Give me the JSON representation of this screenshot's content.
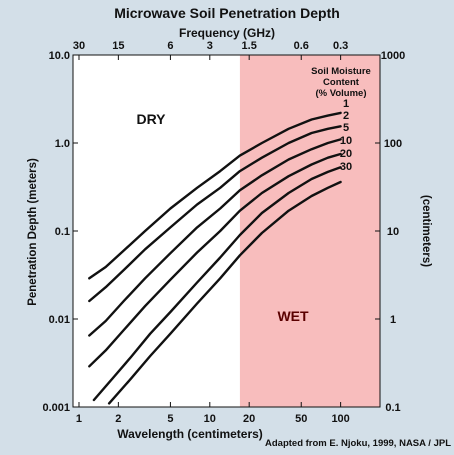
{
  "chart_data": {
    "type": "line",
    "title": "Microwave Soil Penetration Depth",
    "top_axis_label": "Frequency (GHz)",
    "xlabel": "Wavelength (centimeters)",
    "ylabel": "Penetration Depth (meters)",
    "right_axis_label": "(centimeters)",
    "credit": "Adapted from E. Njoku, 1999, NASA / JPL",
    "x_scale": "log",
    "y_scale": "log",
    "xlim": [
      0.9,
      200
    ],
    "ylim": [
      0.001,
      10
    ],
    "x_ticks": [
      1,
      2,
      5,
      10,
      20,
      50,
      100
    ],
    "y_tick_labels": [
      "0.001",
      "0.01",
      "0.1",
      "1.0",
      "10.0"
    ],
    "y_ticks": [
      0.001,
      0.01,
      0.1,
      1.0,
      10.0
    ],
    "right_tick_labels": [
      "0.1",
      "1",
      "10",
      "100",
      "1000"
    ],
    "top_ticks": [
      {
        "label": "30",
        "wavelength": 1
      },
      {
        "label": "15",
        "wavelength": 2
      },
      {
        "label": "6",
        "wavelength": 5
      },
      {
        "label": "3",
        "wavelength": 10
      },
      {
        "label": "1.5",
        "wavelength": 20
      },
      {
        "label": "0.6",
        "wavelength": 50
      },
      {
        "label": "0.3",
        "wavelength": 100
      }
    ],
    "regions": [
      {
        "label": "DRY",
        "color": "#ffffff",
        "from": 0.9,
        "to": 17
      },
      {
        "label": "WET",
        "color": "#f8bdbd",
        "from": 17,
        "to": 200
      }
    ],
    "legend_title": [
      "Soil Moisture",
      "Content",
      "(% Volume)"
    ],
    "series": [
      {
        "name": "1",
        "x": [
          1.2,
          1.6,
          2.2,
          3.2,
          5,
          8,
          12,
          17,
          25,
          40,
          60,
          80,
          100
        ],
        "y": [
          0.029,
          0.039,
          0.06,
          0.1,
          0.18,
          0.31,
          0.48,
          0.72,
          1.0,
          1.45,
          1.85,
          2.05,
          2.2
        ]
      },
      {
        "name": "2",
        "x": [
          1.2,
          1.6,
          2.2,
          3.2,
          5,
          8,
          12,
          17,
          25,
          40,
          60,
          80,
          100
        ],
        "y": [
          0.016,
          0.023,
          0.036,
          0.062,
          0.11,
          0.2,
          0.31,
          0.48,
          0.68,
          1.0,
          1.3,
          1.45,
          1.55
        ]
      },
      {
        "name": "5",
        "x": [
          1.2,
          1.6,
          2.2,
          3.2,
          5,
          8,
          12,
          17,
          25,
          40,
          60,
          80,
          100
        ],
        "y": [
          0.0065,
          0.0095,
          0.016,
          0.029,
          0.056,
          0.11,
          0.18,
          0.29,
          0.43,
          0.65,
          0.85,
          1.0,
          1.1
        ]
      },
      {
        "name": "10",
        "x": [
          1.2,
          1.6,
          2.2,
          3.2,
          5,
          8,
          12,
          17,
          25,
          40,
          60,
          80,
          100
        ],
        "y": [
          0.0029,
          0.0044,
          0.0075,
          0.014,
          0.028,
          0.057,
          0.1,
          0.17,
          0.27,
          0.42,
          0.57,
          0.68,
          0.75
        ]
      },
      {
        "name": "20",
        "x": [
          1.3,
          1.8,
          2.5,
          3.5,
          5,
          8,
          12,
          17,
          25,
          40,
          60,
          80,
          100
        ],
        "y": [
          0.0012,
          0.0021,
          0.0037,
          0.0068,
          0.012,
          0.026,
          0.05,
          0.09,
          0.16,
          0.27,
          0.39,
          0.47,
          0.53
        ]
      },
      {
        "name": "30",
        "x": [
          1.7,
          2.5,
          3.5,
          5,
          8,
          12,
          17,
          25,
          40,
          60,
          80,
          100
        ],
        "y": [
          0.0011,
          0.0021,
          0.0038,
          0.0068,
          0.015,
          0.029,
          0.053,
          0.095,
          0.17,
          0.25,
          0.31,
          0.36
        ]
      }
    ]
  }
}
